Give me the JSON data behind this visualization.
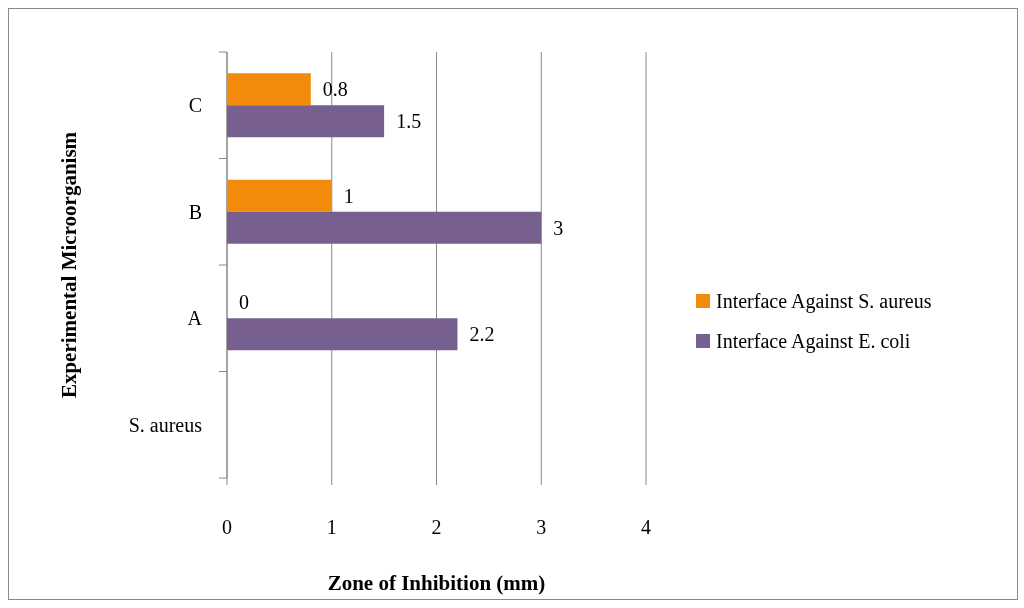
{
  "chart_data": {
    "type": "bar",
    "orientation": "horizontal",
    "xlabel": "Zone of Inhibition (mm)",
    "ylabel": "Experimental Microorganism",
    "categories": [
      "C",
      "B",
      "A",
      "S. aureus"
    ],
    "series": [
      {
        "name": "Interface Against S. aureus",
        "color": "#f28a0c",
        "values": [
          0.8,
          1,
          0,
          null
        ]
      },
      {
        "name": "Interface Against E. coli",
        "color": "#77608f",
        "values": [
          1.5,
          3,
          2.2,
          null
        ]
      }
    ],
    "xlim": [
      0,
      4
    ],
    "xticks": [
      0,
      1,
      2,
      3,
      4
    ],
    "grid": "x",
    "legend": "right",
    "data_labels": true
  }
}
